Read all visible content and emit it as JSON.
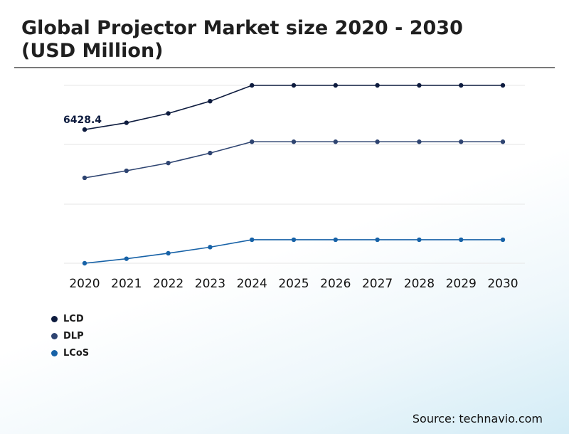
{
  "title": {
    "line1": "Global Projector Market size 2020 - 2030",
    "line2": "(USD Million)"
  },
  "source": "Source: technavio.com",
  "chart_data": {
    "type": "line",
    "x": [
      "2020",
      "2021",
      "2022",
      "2023",
      "2024",
      "2025",
      "2026",
      "2027",
      "2028",
      "2029",
      "2030"
    ],
    "series": [
      {
        "name": "LCD",
        "color": "#0d1b3e",
        "values": [
          6428.4,
          6640,
          6930,
          7310,
          7800,
          7800,
          7800,
          7800,
          7800,
          7800,
          7800
        ]
      },
      {
        "name": "DLP",
        "color": "#2e4471",
        "values": [
          4930,
          5150,
          5390,
          5700,
          6050,
          6050,
          6050,
          6050,
          6050,
          6050,
          6050
        ]
      },
      {
        "name": "LCoS",
        "color": "#1762a7",
        "values": [
          2280,
          2420,
          2590,
          2780,
          3010,
          3010,
          3010,
          3010,
          3010,
          3010,
          3010
        ]
      }
    ],
    "annotations": [
      {
        "series": "LCD",
        "x": "2020",
        "text": "6428.4"
      }
    ],
    "grid": true,
    "legend_position": "bottom-left"
  }
}
